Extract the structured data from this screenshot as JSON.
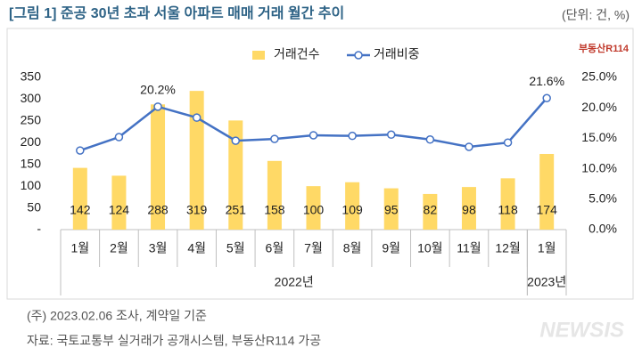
{
  "chart_data": {
    "type": "combo",
    "title": "[그림 1] 준공 30년 초과 서울 아파트 매매 거래 월간 추이",
    "unit_note": "(단위: 건, %)",
    "categories": [
      "1월",
      "2월",
      "3월",
      "4월",
      "5월",
      "6월",
      "7월",
      "8월",
      "9월",
      "10월",
      "11월",
      "12월",
      "1월"
    ],
    "category_groups": [
      {
        "label": "2022년",
        "count": 12
      },
      {
        "label": "2023년",
        "count": 1
      }
    ],
    "series": [
      {
        "name": "거래건수",
        "type": "bar",
        "color": "#FFD966",
        "values": [
          142,
          124,
          288,
          319,
          251,
          158,
          100,
          109,
          95,
          82,
          98,
          118,
          174
        ]
      },
      {
        "name": "거래비중",
        "type": "line",
        "axis": "y2",
        "color": "#4472C4",
        "values": [
          13.0,
          15.2,
          20.2,
          18.4,
          14.6,
          14.9,
          15.5,
          15.4,
          15.6,
          14.8,
          13.6,
          14.3,
          21.6
        ],
        "value_labels": [
          null,
          null,
          "20.2%",
          null,
          null,
          null,
          null,
          null,
          null,
          null,
          null,
          null,
          "21.6%"
        ]
      }
    ],
    "ylim": [
      0,
      350
    ],
    "yticks": [
      {
        "value": 0,
        "label": "-"
      },
      50,
      100,
      150,
      200,
      250,
      300,
      350
    ],
    "y2lim": [
      0,
      25
    ],
    "y2ticks": [
      {
        "value": 0,
        "label": "0.0%"
      },
      {
        "value": 5,
        "label": "5.0%"
      },
      {
        "value": 10,
        "label": "10.0%"
      },
      {
        "value": 15,
        "label": "15.0%"
      },
      {
        "value": 20,
        "label": "20.0%"
      },
      {
        "value": 25,
        "label": "25.0%"
      }
    ],
    "legend": "top"
  },
  "notes": {
    "note": "(주) 2023.02.06 조사, 계약일 기준",
    "source": "자료: 국토교통부 실거래가 공개시스템, 부동산R114 가공"
  },
  "logo": "부동산R114",
  "watermark": "NEWSIS"
}
